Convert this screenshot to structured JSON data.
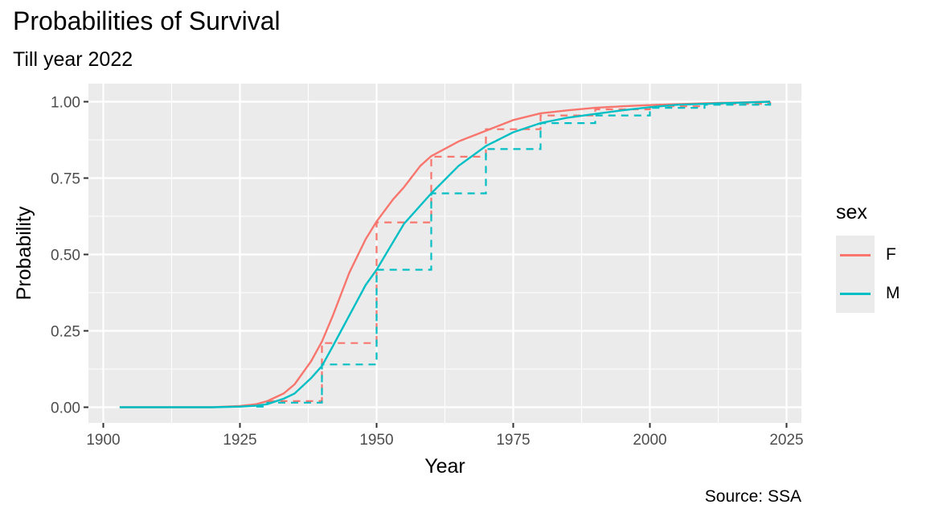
{
  "title": "Probabilities of Survival",
  "subtitle": "Till year 2022",
  "caption": "Source: SSA",
  "legend": {
    "title": "sex",
    "items": [
      {
        "label": "F",
        "color": "#f8766d"
      },
      {
        "label": "M",
        "color": "#00bfc4"
      }
    ]
  },
  "chart_data": {
    "type": "line",
    "title": "Probabilities of Survival",
    "subtitle": "Till year 2022",
    "xlabel": "Year",
    "ylabel": "Probability",
    "xlim": [
      1900,
      2025
    ],
    "ylim": [
      0,
      1
    ],
    "x_ticks": [
      1900,
      1925,
      1950,
      1975,
      2000,
      2025
    ],
    "y_ticks": [
      "0.00",
      "0.25",
      "0.50",
      "0.75",
      "1.00"
    ],
    "grid": true,
    "legend_position": "right",
    "series": [
      {
        "name": "F",
        "color": "#f8766d",
        "smooth": {
          "x": [
            1903,
            1915,
            1920,
            1925,
            1928,
            1930,
            1933,
            1935,
            1938,
            1940,
            1942,
            1945,
            1948,
            1950,
            1953,
            1955,
            1958,
            1960,
            1965,
            1970,
            1975,
            1980,
            1985,
            1990,
            1995,
            2000,
            2005,
            2010,
            2015,
            2022
          ],
          "y": [
            0.0,
            0.0,
            0.0,
            0.004,
            0.01,
            0.02,
            0.045,
            0.075,
            0.15,
            0.215,
            0.3,
            0.44,
            0.55,
            0.608,
            0.68,
            0.72,
            0.79,
            0.822,
            0.87,
            0.905,
            0.94,
            0.962,
            0.972,
            0.98,
            0.985,
            0.989,
            0.992,
            0.995,
            0.997,
            1.0
          ]
        },
        "step": {
          "x": [
            1930,
            1940,
            1950,
            1960,
            1970,
            1980,
            1990,
            2000,
            2010,
            2022
          ],
          "y": [
            0.02,
            0.21,
            0.605,
            0.82,
            0.91,
            0.955,
            0.975,
            0.985,
            0.993,
            1.0
          ]
        }
      },
      {
        "name": "M",
        "color": "#00bfc4",
        "smooth": {
          "x": [
            1903,
            1915,
            1920,
            1925,
            1928,
            1930,
            1933,
            1935,
            1938,
            1940,
            1942,
            1945,
            1948,
            1950,
            1953,
            1955,
            1958,
            1960,
            1965,
            1970,
            1975,
            1980,
            1985,
            1990,
            1995,
            2000,
            2005,
            2010,
            2015,
            2022
          ],
          "y": [
            0.0,
            0.0,
            0.0,
            0.002,
            0.005,
            0.01,
            0.028,
            0.045,
            0.095,
            0.135,
            0.2,
            0.3,
            0.4,
            0.45,
            0.54,
            0.6,
            0.66,
            0.7,
            0.79,
            0.855,
            0.9,
            0.93,
            0.948,
            0.96,
            0.972,
            0.982,
            0.99,
            0.993,
            0.996,
            1.0
          ]
        },
        "step": {
          "x": [
            1928,
            1930,
            1940,
            1950,
            1960,
            1970,
            1980,
            1990,
            2000,
            2010,
            2022
          ],
          "y": [
            0.002,
            0.015,
            0.14,
            0.45,
            0.7,
            0.845,
            0.93,
            0.955,
            0.98,
            0.99,
            1.0
          ]
        }
      }
    ]
  }
}
